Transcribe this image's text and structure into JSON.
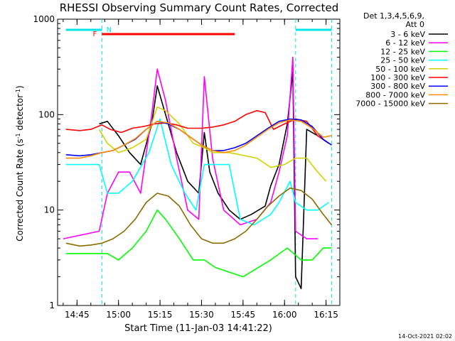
{
  "chart_data": {
    "type": "line",
    "title": "RHESSI Observing Summary Count Rates, Corrected",
    "xlabel": "Start Time (11-Jan-03 14:41:22)",
    "ylabel": "Corrected Count Rate (s⁻¹ detector⁻¹)",
    "ylabel_parts": [
      "Corrected Count Rate (s",
      "-1",
      " detector",
      "-1",
      ")"
    ],
    "y_scale": "log",
    "ylim": [
      1,
      1000
    ],
    "xlim_minutes": [
      14.633,
      16.333
    ],
    "x_ticks": [
      "14:45",
      "15:00",
      "15:15",
      "15:30",
      "15:45",
      "16:00",
      "16:15"
    ],
    "y_ticks": [
      "1",
      "10",
      "100",
      "1000"
    ],
    "detector_info": [
      "Det 1,3,4,5,6,9,",
      "Att 0"
    ],
    "footer_date": "14-Oct-2021 02:02",
    "flags": {
      "N": {
        "label": "N",
        "color": "#00e5e5",
        "intervals": [
          [
            "14:41",
            "14:54"
          ],
          [
            "16:04",
            "16:17"
          ]
        ]
      },
      "F": {
        "label": "F",
        "color": "#ff0000",
        "intervals": [
          [
            "14:54",
            "15:42"
          ]
        ]
      }
    },
    "night_boundaries": [
      "14:54",
      "16:04",
      "16:17"
    ],
    "series": [
      {
        "name": "3 - 6 keV",
        "color": "#000000",
        "points": [
          [
            "14:53",
            80
          ],
          [
            "14:56",
            85
          ],
          [
            "15:00",
            60
          ],
          [
            "15:04",
            40
          ],
          [
            "15:08",
            30
          ],
          [
            "15:12",
            80
          ],
          [
            "15:14",
            200
          ],
          [
            "15:17",
            100
          ],
          [
            "15:21",
            40
          ],
          [
            "15:25",
            20
          ],
          [
            "15:29",
            15
          ],
          [
            "15:31",
            65
          ],
          [
            "15:33",
            25
          ],
          [
            "15:36",
            15
          ],
          [
            "15:40",
            10
          ],
          [
            "15:44",
            8
          ],
          [
            "15:48",
            9
          ],
          [
            "15:53",
            11
          ],
          [
            "15:55",
            18
          ],
          [
            "15:58",
            30
          ],
          [
            "16:01",
            80
          ],
          [
            "16:03",
            280
          ],
          [
            "16:04",
            2
          ],
          [
            "16:06",
            1.5
          ],
          [
            "16:08",
            70
          ],
          [
            "16:12",
            60
          ],
          [
            "16:16",
            50
          ]
        ]
      },
      {
        "name": "6 - 12 keV",
        "color": "#ff00ff",
        "points": [
          [
            "14:40",
            5
          ],
          [
            "14:53",
            6
          ],
          [
            "14:56",
            15
          ],
          [
            "15:00",
            25
          ],
          [
            "15:04",
            25
          ],
          [
            "15:08",
            15
          ],
          [
            "15:12",
            100
          ],
          [
            "15:14",
            300
          ],
          [
            "15:17",
            140
          ],
          [
            "15:21",
            35
          ],
          [
            "15:25",
            10
          ],
          [
            "15:29",
            8
          ],
          [
            "15:31",
            250
          ],
          [
            "15:34",
            35
          ],
          [
            "15:38",
            10
          ],
          [
            "15:44",
            7
          ],
          [
            "15:50",
            8
          ],
          [
            "15:55",
            12
          ],
          [
            "15:58",
            25
          ],
          [
            "16:01",
            60
          ],
          [
            "16:03",
            400
          ],
          [
            "16:04",
            6
          ],
          [
            "16:08",
            5
          ],
          [
            "16:12",
            5
          ]
        ]
      },
      {
        "name": "12 - 25 keV",
        "color": "#00ff00",
        "points": [
          [
            "14:41",
            3.5
          ],
          [
            "14:53",
            3.5
          ],
          [
            "14:56",
            3.5
          ],
          [
            "15:00",
            3
          ],
          [
            "15:05",
            4
          ],
          [
            "15:10",
            6
          ],
          [
            "15:14",
            10
          ],
          [
            "15:17",
            8
          ],
          [
            "15:22",
            5
          ],
          [
            "15:27",
            3
          ],
          [
            "15:31",
            3
          ],
          [
            "15:35",
            2.5
          ],
          [
            "15:45",
            2
          ],
          [
            "15:55",
            3
          ],
          [
            "16:01",
            4
          ],
          [
            "16:06",
            3
          ],
          [
            "16:10",
            3
          ],
          [
            "16:14",
            4
          ],
          [
            "16:17",
            4
          ]
        ]
      },
      {
        "name": "25 - 50 keV",
        "color": "#00ffff",
        "points": [
          [
            "14:41",
            30
          ],
          [
            "14:53",
            30
          ],
          [
            "14:56",
            15
          ],
          [
            "15:00",
            15
          ],
          [
            "15:05",
            20
          ],
          [
            "15:11",
            40
          ],
          [
            "15:15",
            90
          ],
          [
            "15:19",
            30
          ],
          [
            "15:24",
            15
          ],
          [
            "15:28",
            10
          ],
          [
            "15:31",
            30
          ],
          [
            "15:36",
            30
          ],
          [
            "15:40",
            30
          ],
          [
            "15:44",
            8
          ],
          [
            "15:49",
            7
          ],
          [
            "15:55",
            9
          ],
          [
            "15:58",
            12
          ],
          [
            "16:02",
            20
          ],
          [
            "16:04",
            12
          ],
          [
            "16:08",
            10
          ],
          [
            "16:12",
            10
          ],
          [
            "16:16",
            12
          ]
        ]
      },
      {
        "name": "50 - 100 keV",
        "color": "#d2d200",
        "points": [
          [
            "14:53",
            70
          ],
          [
            "14:56",
            50
          ],
          [
            "15:00",
            40
          ],
          [
            "15:05",
            45
          ],
          [
            "15:10",
            55
          ],
          [
            "15:14",
            120
          ],
          [
            "15:17",
            110
          ],
          [
            "15:22",
            80
          ],
          [
            "15:27",
            50
          ],
          [
            "15:31",
            45
          ],
          [
            "15:34",
            40
          ],
          [
            "15:40",
            40
          ],
          [
            "15:44",
            38
          ],
          [
            "15:50",
            35
          ],
          [
            "15:55",
            28
          ],
          [
            "16:00",
            30
          ],
          [
            "16:04",
            35
          ],
          [
            "16:08",
            35
          ],
          [
            "16:12",
            25
          ],
          [
            "16:15",
            20
          ]
        ]
      },
      {
        "name": "100 - 300 keV",
        "color": "#ff0000",
        "points": [
          [
            "14:41",
            70
          ],
          [
            "14:46",
            68
          ],
          [
            "14:50",
            70
          ],
          [
            "14:54",
            78
          ],
          [
            "14:57",
            70
          ],
          [
            "15:01",
            65
          ],
          [
            "15:05",
            72
          ],
          [
            "15:09",
            75
          ],
          [
            "15:13",
            80
          ],
          [
            "15:17",
            82
          ],
          [
            "15:21",
            78
          ],
          [
            "15:25",
            72
          ],
          [
            "15:30",
            72
          ],
          [
            "15:34",
            74
          ],
          [
            "15:38",
            78
          ],
          [
            "15:42",
            85
          ],
          [
            "15:46",
            100
          ],
          [
            "15:50",
            110
          ],
          [
            "15:53",
            105
          ],
          [
            "15:56",
            70
          ],
          [
            "16:00",
            80
          ],
          [
            "16:04",
            90
          ],
          [
            "16:08",
            85
          ],
          [
            "16:12",
            60
          ],
          [
            "16:16",
            50
          ]
        ]
      },
      {
        "name": "300 - 800 keV",
        "color": "#0000ff",
        "points": [
          [
            "14:41",
            38
          ],
          [
            "14:46",
            37
          ],
          [
            "14:50",
            38
          ],
          [
            "14:54",
            40
          ],
          [
            "14:58",
            42
          ],
          [
            "15:02",
            48
          ],
          [
            "15:06",
            55
          ],
          [
            "15:10",
            70
          ],
          [
            "15:14",
            85
          ],
          [
            "15:18",
            80
          ],
          [
            "15:22",
            70
          ],
          [
            "15:26",
            58
          ],
          [
            "15:30",
            48
          ],
          [
            "15:34",
            42
          ],
          [
            "15:38",
            42
          ],
          [
            "15:42",
            45
          ],
          [
            "15:46",
            50
          ],
          [
            "15:50",
            60
          ],
          [
            "15:54",
            72
          ],
          [
            "15:58",
            85
          ],
          [
            "16:02",
            90
          ],
          [
            "16:06",
            88
          ],
          [
            "16:10",
            75
          ],
          [
            "16:14",
            55
          ],
          [
            "16:17",
            48
          ]
        ]
      },
      {
        "name": "800 - 7000 keV",
        "color": "#ff8c00",
        "points": [
          [
            "14:41",
            35
          ],
          [
            "14:46",
            35
          ],
          [
            "14:50",
            37
          ],
          [
            "14:54",
            40
          ],
          [
            "14:58",
            42
          ],
          [
            "15:02",
            48
          ],
          [
            "15:06",
            56
          ],
          [
            "15:10",
            70
          ],
          [
            "15:14",
            85
          ],
          [
            "15:18",
            82
          ],
          [
            "15:22",
            70
          ],
          [
            "15:26",
            58
          ],
          [
            "15:30",
            48
          ],
          [
            "15:34",
            42
          ],
          [
            "15:38",
            40
          ],
          [
            "15:42",
            42
          ],
          [
            "15:46",
            48
          ],
          [
            "15:50",
            58
          ],
          [
            "15:54",
            70
          ],
          [
            "15:58",
            82
          ],
          [
            "16:02",
            88
          ],
          [
            "16:06",
            85
          ],
          [
            "16:10",
            72
          ],
          [
            "16:14",
            58
          ],
          [
            "16:17",
            60
          ]
        ]
      },
      {
        "name": "7000 - 15000 keV",
        "color": "#8b6b00",
        "points": [
          [
            "14:41",
            4.5
          ],
          [
            "14:46",
            4.2
          ],
          [
            "14:50",
            4.3
          ],
          [
            "14:54",
            4.5
          ],
          [
            "14:58",
            5
          ],
          [
            "15:02",
            6
          ],
          [
            "15:06",
            8
          ],
          [
            "15:10",
            12
          ],
          [
            "15:14",
            15
          ],
          [
            "15:18",
            14
          ],
          [
            "15:22",
            11
          ],
          [
            "15:26",
            7
          ],
          [
            "15:30",
            5
          ],
          [
            "15:34",
            4.5
          ],
          [
            "15:38",
            4.5
          ],
          [
            "15:42",
            5
          ],
          [
            "15:46",
            6
          ],
          [
            "15:50",
            8
          ],
          [
            "15:54",
            11
          ],
          [
            "15:58",
            14
          ],
          [
            "16:02",
            17
          ],
          [
            "16:06",
            16
          ],
          [
            "16:10",
            13
          ],
          [
            "16:14",
            9
          ],
          [
            "16:17",
            7
          ]
        ]
      }
    ]
  }
}
